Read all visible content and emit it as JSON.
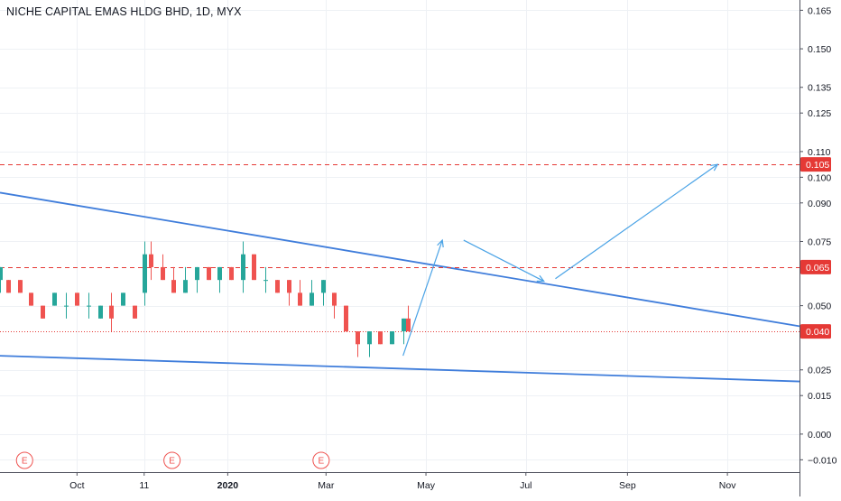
{
  "header": {
    "title": "NICHE CAPITAL EMAS HLDG BHD, 1D, MYX"
  },
  "colors": {
    "up": "#26a69a",
    "down": "#ef5350",
    "trendline": "#3f7ddb",
    "arrow": "#4aa3e6",
    "level": "#e53935",
    "last_price_line": "#e53935",
    "grid": "#eef1f5",
    "text": "#131722"
  },
  "chart_data": {
    "type": "candlestick",
    "title": "NICHE CAPITAL EMAS HLDG BHD, 1D, MYX",
    "price_axis": {
      "ticks": [
        0.165,
        0.15,
        0.135,
        0.125,
        0.11,
        0.1,
        0.09,
        0.075,
        0.05,
        0.025,
        0.015,
        0.0,
        -0.01
      ],
      "tick_labels": [
        "0.165",
        "0.150",
        "0.135",
        "0.125",
        "0.110",
        "0.100",
        "0.090",
        "0.075",
        "0.050",
        "0.025",
        "0.015",
        "0.000",
        "−0.010"
      ],
      "range": [
        -0.0148,
        0.169
      ]
    },
    "time_axis": {
      "labels": [
        "Oct",
        "11",
        "2020",
        "Mar",
        "May",
        "Jul",
        "Sep",
        "Nov"
      ],
      "label_dates": [
        "2019-10-01",
        "2019-11-11",
        "2020-01-01",
        "2020-03-01",
        "2020-05-01",
        "2020-07-01",
        "2020-09-01",
        "2020-11-01"
      ],
      "range": [
        "2019-08-15",
        "2020-12-15"
      ]
    },
    "price_labels": [
      {
        "value": 0.105,
        "text": "0.105",
        "style": "level"
      },
      {
        "value": 0.065,
        "text": "0.065",
        "style": "level"
      },
      {
        "value": 0.04,
        "text": "0.040",
        "style": "last"
      }
    ],
    "horizontal_levels": [
      {
        "value": 0.105,
        "style": "dashed"
      },
      {
        "value": 0.065,
        "style": "dashed"
      },
      {
        "value": 0.04,
        "style": "dotted"
      }
    ],
    "trendlines": [
      {
        "from": {
          "date": "2019-08-15",
          "price": 0.094
        },
        "to": {
          "date": "2020-12-15",
          "price": 0.042
        }
      },
      {
        "from": {
          "date": "2019-08-15",
          "price": 0.0305
        },
        "to": {
          "date": "2020-12-15",
          "price": 0.0205
        }
      }
    ],
    "projection_arrows": [
      {
        "from": {
          "date": "2020-04-17",
          "price": 0.0305
        },
        "to": {
          "date": "2020-05-11",
          "price": 0.0755
        }
      },
      {
        "from": {
          "date": "2020-05-24",
          "price": 0.0755
        },
        "to": {
          "date": "2020-07-12",
          "price": 0.0595
        }
      },
      {
        "from": {
          "date": "2020-07-19",
          "price": 0.0605
        },
        "to": {
          "date": "2020-10-26",
          "price": 0.105
        }
      }
    ],
    "event_markers": [
      {
        "date": "2019-08-30",
        "label": "E"
      },
      {
        "date": "2019-11-28",
        "label": "E"
      },
      {
        "date": "2020-02-27",
        "label": "E"
      }
    ],
    "candles": [
      {
        "date": "2019-08-15",
        "open": 0.06,
        "high": 0.065,
        "low": 0.055,
        "close": 0.065
      },
      {
        "date": "2019-08-20",
        "open": 0.06,
        "high": 0.06,
        "low": 0.055,
        "close": 0.055
      },
      {
        "date": "2019-08-27",
        "open": 0.06,
        "high": 0.06,
        "low": 0.055,
        "close": 0.055
      },
      {
        "date": "2019-09-03",
        "open": 0.055,
        "high": 0.055,
        "low": 0.05,
        "close": 0.05
      },
      {
        "date": "2019-09-10",
        "open": 0.05,
        "high": 0.05,
        "low": 0.045,
        "close": 0.045
      },
      {
        "date": "2019-09-17",
        "open": 0.05,
        "high": 0.055,
        "low": 0.05,
        "close": 0.055
      },
      {
        "date": "2019-09-24",
        "open": 0.05,
        "high": 0.055,
        "low": 0.045,
        "close": 0.05
      },
      {
        "date": "2019-10-01",
        "open": 0.055,
        "high": 0.055,
        "low": 0.05,
        "close": 0.05
      },
      {
        "date": "2019-10-08",
        "open": 0.05,
        "high": 0.055,
        "low": 0.045,
        "close": 0.05
      },
      {
        "date": "2019-10-15",
        "open": 0.045,
        "high": 0.05,
        "low": 0.045,
        "close": 0.05
      },
      {
        "date": "2019-10-22",
        "open": 0.05,
        "high": 0.055,
        "low": 0.04,
        "close": 0.045
      },
      {
        "date": "2019-10-29",
        "open": 0.05,
        "high": 0.055,
        "low": 0.05,
        "close": 0.055
      },
      {
        "date": "2019-11-05",
        "open": 0.05,
        "high": 0.05,
        "low": 0.045,
        "close": 0.045
      },
      {
        "date": "2019-11-11",
        "open": 0.055,
        "high": 0.075,
        "low": 0.05,
        "close": 0.07
      },
      {
        "date": "2019-11-15",
        "open": 0.07,
        "high": 0.075,
        "low": 0.06,
        "close": 0.065
      },
      {
        "date": "2019-11-22",
        "open": 0.065,
        "high": 0.07,
        "low": 0.06,
        "close": 0.06
      },
      {
        "date": "2019-11-29",
        "open": 0.06,
        "high": 0.065,
        "low": 0.055,
        "close": 0.055
      },
      {
        "date": "2019-12-06",
        "open": 0.055,
        "high": 0.065,
        "low": 0.055,
        "close": 0.06
      },
      {
        "date": "2019-12-13",
        "open": 0.06,
        "high": 0.065,
        "low": 0.055,
        "close": 0.065
      },
      {
        "date": "2019-12-20",
        "open": 0.065,
        "high": 0.065,
        "low": 0.06,
        "close": 0.06
      },
      {
        "date": "2019-12-27",
        "open": 0.06,
        "high": 0.065,
        "low": 0.055,
        "close": 0.065
      },
      {
        "date": "2020-01-03",
        "open": 0.065,
        "high": 0.065,
        "low": 0.06,
        "close": 0.06
      },
      {
        "date": "2020-01-10",
        "open": 0.06,
        "high": 0.075,
        "low": 0.055,
        "close": 0.07
      },
      {
        "date": "2020-01-17",
        "open": 0.07,
        "high": 0.07,
        "low": 0.06,
        "close": 0.06
      },
      {
        "date": "2020-01-24",
        "open": 0.06,
        "high": 0.065,
        "low": 0.055,
        "close": 0.06
      },
      {
        "date": "2020-01-31",
        "open": 0.06,
        "high": 0.06,
        "low": 0.055,
        "close": 0.055
      },
      {
        "date": "2020-02-07",
        "open": 0.06,
        "high": 0.06,
        "low": 0.05,
        "close": 0.055
      },
      {
        "date": "2020-02-14",
        "open": 0.055,
        "high": 0.06,
        "low": 0.05,
        "close": 0.05
      },
      {
        "date": "2020-02-21",
        "open": 0.05,
        "high": 0.06,
        "low": 0.05,
        "close": 0.055
      },
      {
        "date": "2020-02-28",
        "open": 0.055,
        "high": 0.06,
        "low": 0.05,
        "close": 0.06
      },
      {
        "date": "2020-03-06",
        "open": 0.055,
        "high": 0.055,
        "low": 0.045,
        "close": 0.05
      },
      {
        "date": "2020-03-13",
        "open": 0.05,
        "high": 0.05,
        "low": 0.04,
        "close": 0.04
      },
      {
        "date": "2020-03-20",
        "open": 0.04,
        "high": 0.04,
        "low": 0.03,
        "close": 0.035
      },
      {
        "date": "2020-03-27",
        "open": 0.035,
        "high": 0.04,
        "low": 0.03,
        "close": 0.04
      },
      {
        "date": "2020-04-03",
        "open": 0.04,
        "high": 0.04,
        "low": 0.035,
        "close": 0.035
      },
      {
        "date": "2020-04-10",
        "open": 0.035,
        "high": 0.04,
        "low": 0.035,
        "close": 0.04
      },
      {
        "date": "2020-04-17",
        "open": 0.04,
        "high": 0.045,
        "low": 0.035,
        "close": 0.045
      },
      {
        "date": "2020-04-20",
        "open": 0.045,
        "high": 0.05,
        "low": 0.04,
        "close": 0.04
      }
    ]
  }
}
